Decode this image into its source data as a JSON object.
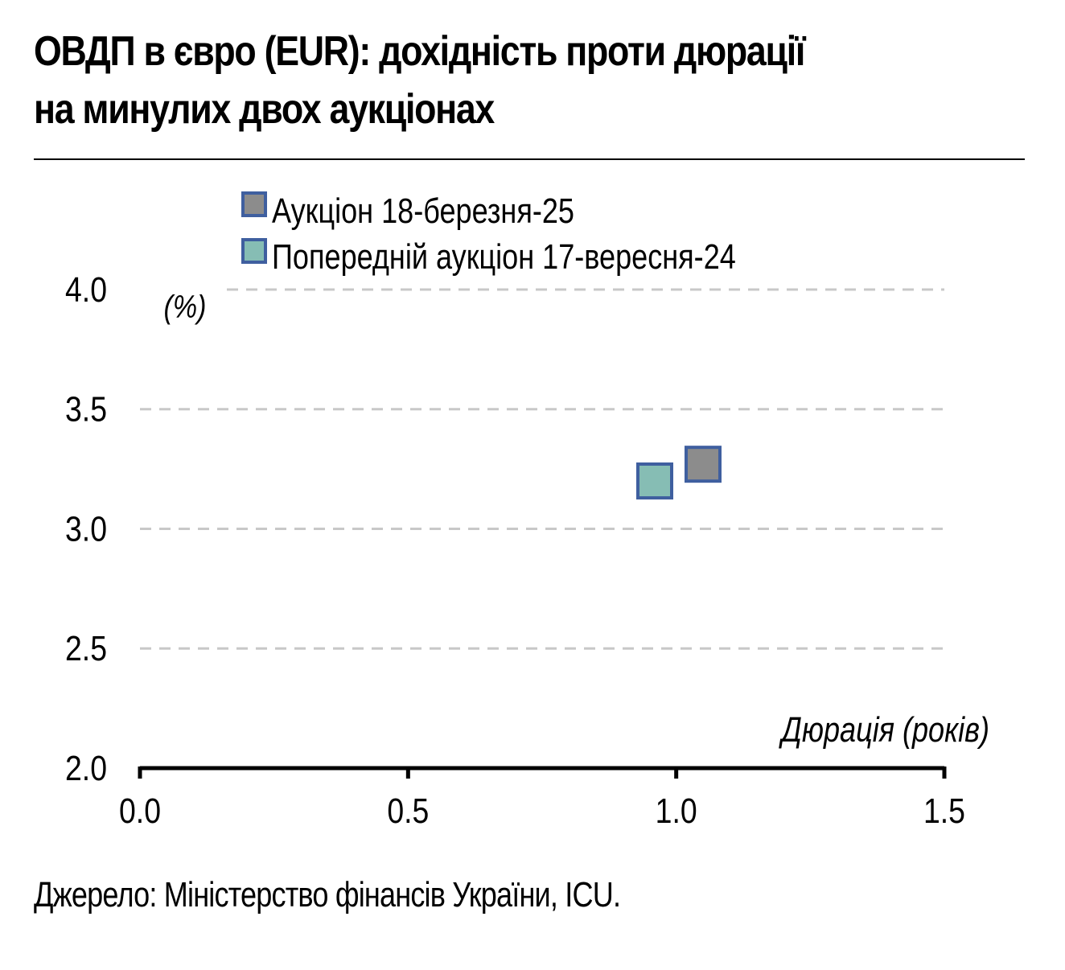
{
  "title_line1": "ОВДП в євро (EUR): дохідність проти дюрації",
  "title_line2": "на минулих двох аукціонах",
  "source": "Джерело: Міністерство фінансів України, ICU.",
  "colors": {
    "current_fill": "#8c8c8c",
    "previous_fill": "#86bdb4",
    "marker_border": "#3f5f9f",
    "grid": "#c8c8c8",
    "axis": "#000000"
  },
  "chart_data": {
    "type": "scatter",
    "title": "ОВДП в євро (EUR): дохідність проти дюрації на минулих двох аукціонах",
    "xlabel": "Дюрація (років)",
    "ylabel": "(%)",
    "xlim": [
      0.0,
      1.5
    ],
    "ylim": [
      2.0,
      4.0
    ],
    "x_ticks": [
      "0.0",
      "0.5",
      "1.0",
      "1.5"
    ],
    "y_ticks": [
      "4.0",
      "3.5",
      "3.0",
      "2.5",
      "2.0"
    ],
    "grid": "horizontal-dashed",
    "legend_position": "top-left",
    "series": [
      {
        "name": "Аукціон 18-березня-25",
        "points": [
          {
            "x": 1.05,
            "y": 3.27
          }
        ]
      },
      {
        "name": "Попередній аукціон 17-вересня-24",
        "points": [
          {
            "x": 0.96,
            "y": 3.2
          }
        ]
      }
    ]
  }
}
